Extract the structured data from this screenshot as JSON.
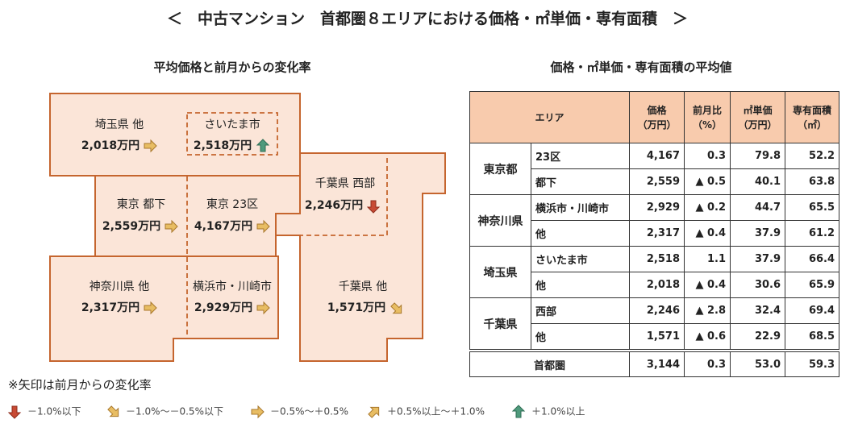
{
  "title": "＜　中古マンション　首都圏８エリアにおける価格・㎡単価・専有面積　＞",
  "map": {
    "title": "平均価格と前月からの変化率",
    "regions": [
      {
        "name": "埼玉県 他",
        "price": "2,018万円"
      },
      {
        "name": "さいたま市",
        "price": "2,518万円"
      },
      {
        "name": "千葉県 西部",
        "price": "2,246万円"
      },
      {
        "name": "東京 都下",
        "price": "2,559万円"
      },
      {
        "name": "東京 23区",
        "price": "4,167万円"
      },
      {
        "name": "神奈川県 他",
        "price": "2,317万円"
      },
      {
        "name": "横浜市・川崎市",
        "price": "2,929万円"
      },
      {
        "name": "千葉県 他",
        "price": "1,571万円"
      }
    ]
  },
  "table": {
    "title": "価格・㎡単価・専有面積の平均値",
    "header": [
      [
        "エリア"
      ],
      [
        "価格",
        "（万円）"
      ],
      [
        "前月比",
        "（%）"
      ],
      [
        "㎡単価",
        "（万円）"
      ],
      [
        "専有面積",
        "（㎡）"
      ]
    ],
    "groups": [
      {
        "name": "東京都",
        "rows": [
          [
            "23区",
            "4,167",
            "0.3",
            "79.8",
            "52.2"
          ],
          [
            "都下",
            "2,559",
            "▲ 0.5",
            "40.1",
            "63.8"
          ]
        ]
      },
      {
        "name": "神奈川県",
        "rows": [
          [
            "横浜市・川崎市",
            "2,929",
            "▲ 0.2",
            "44.7",
            "65.5"
          ],
          [
            "他",
            "2,317",
            "▲ 0.4",
            "37.9",
            "61.2"
          ]
        ]
      },
      {
        "name": "埼玉県",
        "rows": [
          [
            "さいたま市",
            "2,518",
            "1.1",
            "37.9",
            "66.4"
          ],
          [
            "他",
            "2,018",
            "▲ 0.4",
            "30.6",
            "65.9"
          ]
        ]
      },
      {
        "name": "千葉県",
        "rows": [
          [
            "西部",
            "2,246",
            "▲ 2.8",
            "32.4",
            "69.4"
          ],
          [
            "他",
            "1,571",
            "▲ 0.6",
            "22.9",
            "68.5"
          ]
        ]
      }
    ],
    "total": [
      "首都圏",
      "3,144",
      "0.3",
      "53.0",
      "59.3"
    ]
  },
  "note": "※矢印は前月からの変化率",
  "legend": [
    "－1.0%以下",
    "－1.0%～－0.5%以下",
    "－0.5%～＋0.5%",
    "＋0.5%以上～＋1.0%",
    "＋1.0%以上"
  ]
}
